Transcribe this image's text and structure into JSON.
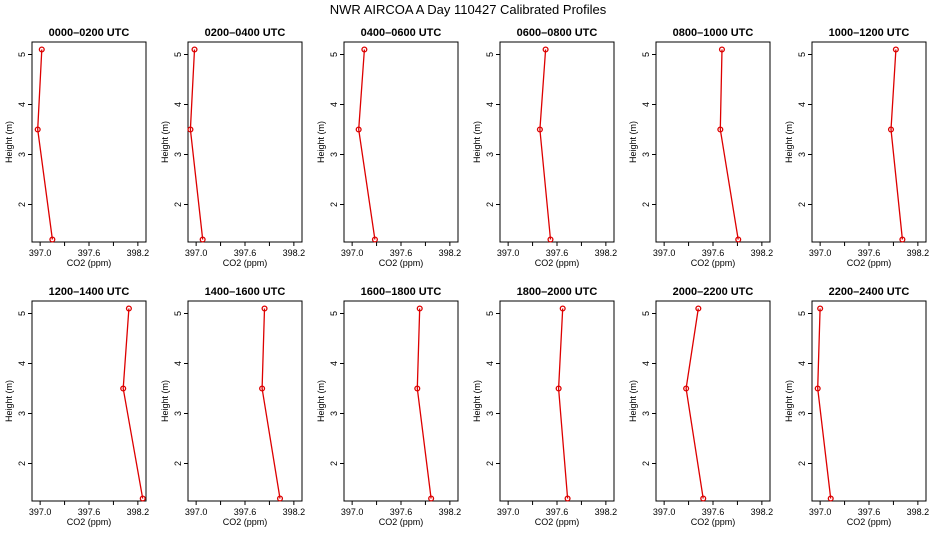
{
  "figure": {
    "title": "NWR AIRCOA A  Day 110427  Calibrated Profiles"
  },
  "style": {
    "series_color": "#dd0000",
    "axis_color": "#000000",
    "background": "#ffffff"
  },
  "chart_data": [
    {
      "type": "line",
      "title": "0000–0200 UTC",
      "xlabel": "CO2 (ppm)",
      "ylabel": "Height (m)",
      "xlim": [
        396.9,
        398.3
      ],
      "ylim": [
        1.25,
        5.25
      ],
      "xticks": [
        "397.0",
        "397.6",
        "398.2"
      ],
      "xtick_values": [
        397.0,
        397.6,
        398.2
      ],
      "yticks": [
        "2",
        "3",
        "4",
        "5"
      ],
      "ytick_values": [
        2,
        3,
        4,
        5
      ],
      "grid": false,
      "legend": "none",
      "x": [
        397.02,
        396.97,
        397.15
      ],
      "y": [
        5.1,
        3.5,
        1.3
      ]
    },
    {
      "type": "line",
      "title": "0200–0400 UTC",
      "xlabel": "CO2 (ppm)",
      "ylabel": "Height (m)",
      "xlim": [
        396.9,
        398.3
      ],
      "ylim": [
        1.25,
        5.25
      ],
      "xticks": [
        "397.0",
        "397.6",
        "398.2"
      ],
      "xtick_values": [
        397.0,
        397.6,
        398.2
      ],
      "yticks": [
        "2",
        "3",
        "4",
        "5"
      ],
      "ytick_values": [
        2,
        3,
        4,
        5
      ],
      "grid": false,
      "legend": "none",
      "x": [
        396.98,
        396.93,
        397.08
      ],
      "y": [
        5.1,
        3.5,
        1.3
      ]
    },
    {
      "type": "line",
      "title": "0400–0600 UTC",
      "xlabel": "CO2 (ppm)",
      "ylabel": "Height (m)",
      "xlim": [
        396.9,
        398.3
      ],
      "ylim": [
        1.25,
        5.25
      ],
      "xticks": [
        "397.0",
        "397.6",
        "398.2"
      ],
      "xtick_values": [
        397.0,
        397.6,
        398.2
      ],
      "yticks": [
        "2",
        "3",
        "4",
        "5"
      ],
      "ytick_values": [
        2,
        3,
        4,
        5
      ],
      "grid": false,
      "legend": "none",
      "x": [
        397.15,
        397.08,
        397.28
      ],
      "y": [
        5.1,
        3.5,
        1.3
      ]
    },
    {
      "type": "line",
      "title": "0600–0800 UTC",
      "xlabel": "CO2 (ppm)",
      "ylabel": "Height (m)",
      "xlim": [
        396.9,
        398.3
      ],
      "ylim": [
        1.25,
        5.25
      ],
      "xticks": [
        "397.0",
        "397.6",
        "398.2"
      ],
      "xtick_values": [
        397.0,
        397.6,
        398.2
      ],
      "yticks": [
        "2",
        "3",
        "4",
        "5"
      ],
      "ytick_values": [
        2,
        3,
        4,
        5
      ],
      "grid": false,
      "legend": "none",
      "x": [
        397.46,
        397.39,
        397.52
      ],
      "y": [
        5.1,
        3.5,
        1.3
      ]
    },
    {
      "type": "line",
      "title": "0800–1000 UTC",
      "xlabel": "CO2 (ppm)",
      "ylabel": "Height (m)",
      "xlim": [
        396.9,
        398.3
      ],
      "ylim": [
        1.25,
        5.25
      ],
      "xticks": [
        "397.0",
        "397.6",
        "398.2"
      ],
      "xtick_values": [
        397.0,
        397.6,
        398.2
      ],
      "yticks": [
        "2",
        "3",
        "4",
        "5"
      ],
      "ytick_values": [
        2,
        3,
        4,
        5
      ],
      "grid": false,
      "legend": "none",
      "x": [
        397.71,
        397.69,
        397.91
      ],
      "y": [
        5.1,
        3.5,
        1.3
      ]
    },
    {
      "type": "line",
      "title": "1000–1200 UTC",
      "xlabel": "CO2 (ppm)",
      "ylabel": "Height (m)",
      "xlim": [
        396.9,
        398.3
      ],
      "ylim": [
        1.25,
        5.25
      ],
      "xticks": [
        "397.0",
        "397.6",
        "398.2"
      ],
      "xtick_values": [
        397.0,
        397.6,
        398.2
      ],
      "yticks": [
        "2",
        "3",
        "4",
        "5"
      ],
      "ytick_values": [
        2,
        3,
        4,
        5
      ],
      "grid": false,
      "legend": "none",
      "x": [
        397.93,
        397.87,
        398.01
      ],
      "y": [
        5.1,
        3.5,
        1.3
      ]
    },
    {
      "type": "line",
      "title": "1200–1400 UTC",
      "xlabel": "CO2 (ppm)",
      "ylabel": "Height (m)",
      "xlim": [
        396.9,
        398.3
      ],
      "ylim": [
        1.25,
        5.25
      ],
      "xticks": [
        "397.0",
        "397.6",
        "398.2"
      ],
      "xtick_values": [
        397.0,
        397.6,
        398.2
      ],
      "yticks": [
        "2",
        "3",
        "4",
        "5"
      ],
      "ytick_values": [
        2,
        3,
        4,
        5
      ],
      "grid": false,
      "legend": "none",
      "x": [
        398.09,
        398.02,
        398.26
      ],
      "y": [
        5.1,
        3.5,
        1.3
      ]
    },
    {
      "type": "line",
      "title": "1400–1600 UTC",
      "xlabel": "CO2 (ppm)",
      "ylabel": "Height (m)",
      "xlim": [
        396.9,
        398.3
      ],
      "ylim": [
        1.25,
        5.25
      ],
      "xticks": [
        "397.0",
        "397.6",
        "398.2"
      ],
      "xtick_values": [
        397.0,
        397.6,
        398.2
      ],
      "yticks": [
        "2",
        "3",
        "4",
        "5"
      ],
      "ytick_values": [
        2,
        3,
        4,
        5
      ],
      "grid": false,
      "legend": "none",
      "x": [
        397.84,
        397.81,
        398.03
      ],
      "y": [
        5.1,
        3.5,
        1.3
      ]
    },
    {
      "type": "line",
      "title": "1600–1800 UTC",
      "xlabel": "CO2 (ppm)",
      "ylabel": "Height (m)",
      "xlim": [
        396.9,
        398.3
      ],
      "ylim": [
        1.25,
        5.25
      ],
      "xticks": [
        "397.0",
        "397.6",
        "398.2"
      ],
      "xtick_values": [
        397.0,
        397.6,
        398.2
      ],
      "yticks": [
        "2",
        "3",
        "4",
        "5"
      ],
      "ytick_values": [
        2,
        3,
        4,
        5
      ],
      "grid": false,
      "legend": "none",
      "x": [
        397.83,
        397.8,
        397.97
      ],
      "y": [
        5.1,
        3.5,
        1.3
      ]
    },
    {
      "type": "line",
      "title": "1800–2000 UTC",
      "xlabel": "CO2 (ppm)",
      "ylabel": "Height (m)",
      "xlim": [
        396.9,
        398.3
      ],
      "ylim": [
        1.25,
        5.25
      ],
      "xticks": [
        "397.0",
        "397.6",
        "398.2"
      ],
      "xtick_values": [
        397.0,
        397.6,
        398.2
      ],
      "yticks": [
        "2",
        "3",
        "4",
        "5"
      ],
      "ytick_values": [
        2,
        3,
        4,
        5
      ],
      "grid": false,
      "legend": "none",
      "x": [
        397.67,
        397.62,
        397.73
      ],
      "y": [
        5.1,
        3.5,
        1.3
      ]
    },
    {
      "type": "line",
      "title": "2000–2200 UTC",
      "xlabel": "CO2 (ppm)",
      "ylabel": "Height (m)",
      "xlim": [
        396.9,
        398.3
      ],
      "ylim": [
        1.25,
        5.25
      ],
      "xticks": [
        "397.0",
        "397.6",
        "398.2"
      ],
      "xtick_values": [
        397.0,
        397.6,
        398.2
      ],
      "yticks": [
        "2",
        "3",
        "4",
        "5"
      ],
      "ytick_values": [
        2,
        3,
        4,
        5
      ],
      "grid": false,
      "legend": "none",
      "x": [
        397.42,
        397.27,
        397.48
      ],
      "y": [
        5.1,
        3.5,
        1.3
      ]
    },
    {
      "type": "line",
      "title": "2200–2400 UTC",
      "xlabel": "CO2 (ppm)",
      "ylabel": "Height (m)",
      "xlim": [
        396.9,
        398.3
      ],
      "ylim": [
        1.25,
        5.25
      ],
      "xticks": [
        "397.0",
        "397.6",
        "398.2"
      ],
      "xtick_values": [
        397.0,
        397.6,
        398.2
      ],
      "yticks": [
        "2",
        "3",
        "4",
        "5"
      ],
      "ytick_values": [
        2,
        3,
        4,
        5
      ],
      "grid": false,
      "legend": "none",
      "x": [
        397.0,
        396.97,
        397.13
      ],
      "y": [
        5.1,
        3.5,
        1.3
      ]
    }
  ]
}
